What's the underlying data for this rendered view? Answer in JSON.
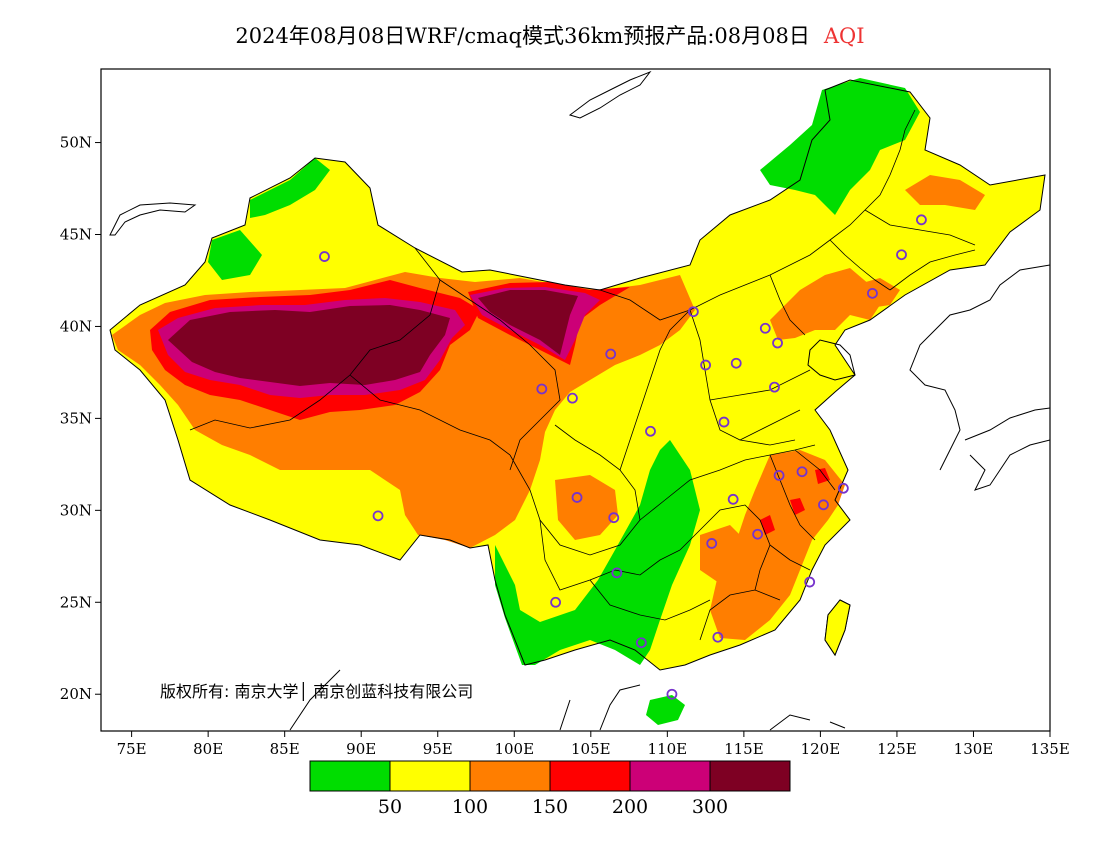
{
  "title": {
    "text": "2024年08月08日WRF/cmaq模式36km预报产品:08月08日",
    "variable": "AQI",
    "variable_color": "#ee3333"
  },
  "axes": {
    "x_ticks": [
      {
        "value": 75,
        "label": "75E"
      },
      {
        "value": 80,
        "label": "80E"
      },
      {
        "value": 85,
        "label": "85E"
      },
      {
        "value": 90,
        "label": "90E"
      },
      {
        "value": 95,
        "label": "95E"
      },
      {
        "value": 100,
        "label": "100E"
      },
      {
        "value": 105,
        "label": "105E"
      },
      {
        "value": 110,
        "label": "110E"
      },
      {
        "value": 115,
        "label": "115E"
      },
      {
        "value": 120,
        "label": "120E"
      },
      {
        "value": 125,
        "label": "125E"
      },
      {
        "value": 130,
        "label": "130E"
      },
      {
        "value": 135,
        "label": "135E"
      }
    ],
    "y_ticks": [
      {
        "value": 20,
        "label": "20N"
      },
      {
        "value": 25,
        "label": "25N"
      },
      {
        "value": 30,
        "label": "30N"
      },
      {
        "value": 35,
        "label": "35N"
      },
      {
        "value": 40,
        "label": "40N"
      },
      {
        "value": 45,
        "label": "45N"
      },
      {
        "value": 50,
        "label": "50N"
      }
    ],
    "lon_range": [
      73,
      135
    ],
    "lat_range": [
      18,
      54
    ]
  },
  "copyright": "版权所有: 南京大学│ 南京创蓝科技有限公司",
  "legend": {
    "colors": [
      "#00dd00",
      "#ffff00",
      "#ff7e00",
      "#ff0000",
      "#cc0077",
      "#7e0023"
    ],
    "labels": [
      "50",
      "100",
      "150",
      "200",
      "300"
    ]
  },
  "palette": {
    "green": "#00dd00",
    "yellow": "#ffff00",
    "orange": "#ff7e00",
    "red": "#ff0000",
    "magenta": "#cc0077",
    "maroon": "#7e0023",
    "station_marker": "#7733cc"
  },
  "stations": [
    {
      "lon": 87.6,
      "lat": 43.8
    },
    {
      "lon": 91.1,
      "lat": 29.7
    },
    {
      "lon": 101.8,
      "lat": 36.6
    },
    {
      "lon": 103.8,
      "lat": 36.1
    },
    {
      "lon": 106.3,
      "lat": 38.5
    },
    {
      "lon": 111.7,
      "lat": 40.8
    },
    {
      "lon": 112.5,
      "lat": 37.9
    },
    {
      "lon": 114.5,
      "lat": 38.0
    },
    {
      "lon": 116.4,
      "lat": 39.9
    },
    {
      "lon": 117.2,
      "lat": 39.1
    },
    {
      "lon": 117.0,
      "lat": 36.7
    },
    {
      "lon": 113.7,
      "lat": 34.8
    },
    {
      "lon": 108.9,
      "lat": 34.3
    },
    {
      "lon": 104.1,
      "lat": 30.7
    },
    {
      "lon": 106.5,
      "lat": 29.6
    },
    {
      "lon": 106.7,
      "lat": 26.6
    },
    {
      "lon": 102.7,
      "lat": 25.0
    },
    {
      "lon": 108.3,
      "lat": 22.8
    },
    {
      "lon": 113.3,
      "lat": 23.1
    },
    {
      "lon": 110.3,
      "lat": 20.0
    },
    {
      "lon": 112.9,
      "lat": 28.2
    },
    {
      "lon": 114.3,
      "lat": 30.6
    },
    {
      "lon": 115.9,
      "lat": 28.7
    },
    {
      "lon": 117.3,
      "lat": 31.9
    },
    {
      "lon": 118.8,
      "lat": 32.1
    },
    {
      "lon": 120.2,
      "lat": 30.3
    },
    {
      "lon": 121.5,
      "lat": 31.2
    },
    {
      "lon": 119.3,
      "lat": 26.1
    },
    {
      "lon": 123.4,
      "lat": 41.8
    },
    {
      "lon": 125.3,
      "lat": 43.9
    },
    {
      "lon": 126.6,
      "lat": 45.8
    }
  ]
}
